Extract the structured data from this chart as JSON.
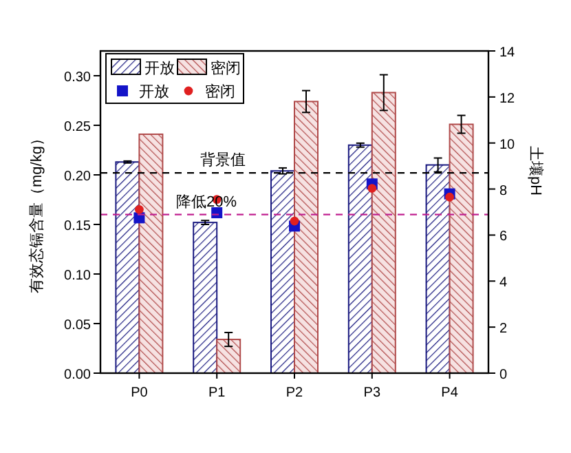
{
  "chart_data": {
    "type": "bar",
    "ylabel": "有效态镉含量（mg/kg）",
    "y2label": "土壤pH",
    "categories": [
      "P0",
      "P1",
      "P2",
      "P3",
      "P4"
    ],
    "series": [
      {
        "name": "开放",
        "color": "#1a1a80",
        "values": [
          0.213,
          0.152,
          0.204,
          0.23,
          0.21
        ],
        "errors": [
          0.001,
          0.002,
          0.003,
          0.002,
          0.007
        ]
      },
      {
        "name": "密闭",
        "color": "#b04a4a",
        "values": [
          0.241,
          0.034,
          0.274,
          0.283,
          0.251
        ],
        "errors": [
          null,
          0.007,
          0.011,
          0.018,
          0.009
        ]
      },
      {
        "name": "开放",
        "type": "scatter",
        "axis": "y2",
        "marker": "square",
        "color": "#1414c8",
        "values": [
          6.75,
          6.97,
          6.39,
          8.22,
          7.79
        ]
      },
      {
        "name": "密闭",
        "type": "scatter",
        "axis": "y2",
        "marker": "circle",
        "color": "#e02020",
        "values": [
          7.11,
          7.55,
          6.61,
          8.03,
          7.65
        ]
      }
    ],
    "ylim": [
      0,
      0.325
    ],
    "yticks": [
      {
        "value": 0,
        "label": "0.00"
      },
      {
        "value": 0.05,
        "label": "0.05"
      },
      {
        "value": 0.1,
        "label": "0.10"
      },
      {
        "value": 0.15,
        "label": "0.15"
      },
      {
        "value": 0.2,
        "label": "0.20"
      },
      {
        "value": 0.25,
        "label": "0.25"
      },
      {
        "value": 0.3,
        "label": "0.30"
      }
    ],
    "y2lim": [
      0,
      14
    ],
    "y2ticks": [
      0,
      2,
      4,
      6,
      8,
      10,
      12,
      14
    ],
    "ref_lines": [
      {
        "axis": "y",
        "value": 0.202,
        "label": "背景值",
        "color": "#000000",
        "line_style": "dashed"
      },
      {
        "axis": "y",
        "value": 0.16,
        "label": "降低20%",
        "color": "#c02090",
        "line_style": "dashed"
      }
    ],
    "legend": "top left",
    "grid": false
  }
}
